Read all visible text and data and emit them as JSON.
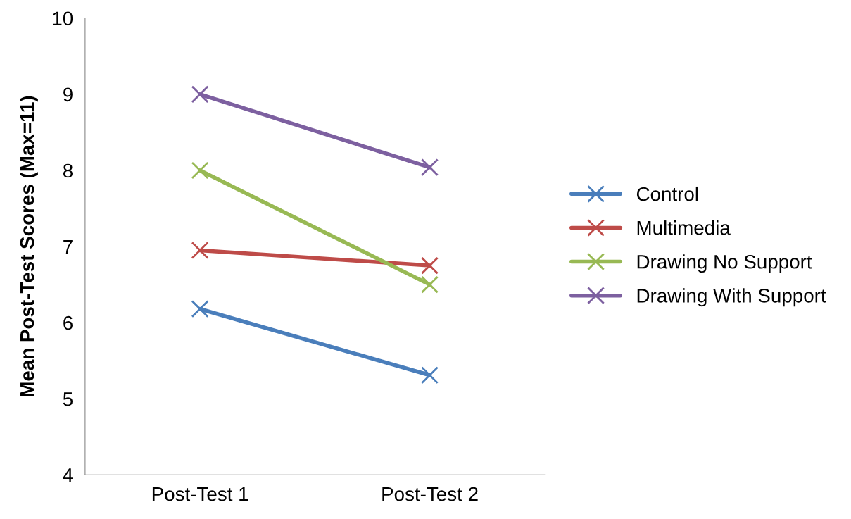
{
  "chart_data": {
    "type": "line",
    "ylabel": "Mean Post-Test Scores (Max=11)",
    "categories": [
      "Post-Test 1",
      "Post-Test 2"
    ],
    "series": [
      {
        "name": "Control",
        "color": "#4a7ebb",
        "values": [
          6.18,
          5.31
        ]
      },
      {
        "name": "Multimedia",
        "color": "#be4b48",
        "values": [
          6.95,
          6.75
        ]
      },
      {
        "name": "Drawing No Support",
        "color": "#98b954",
        "values": [
          8.0,
          6.5
        ]
      },
      {
        "name": "Drawing With Support",
        "color": "#7d60a0",
        "values": [
          9.0,
          8.04
        ]
      }
    ],
    "ylim": [
      4,
      10
    ],
    "yticks": [
      4,
      5,
      6,
      7,
      8,
      9,
      10
    ],
    "grid": false,
    "legend": "right",
    "marker": "cross",
    "line_style": "solid"
  }
}
